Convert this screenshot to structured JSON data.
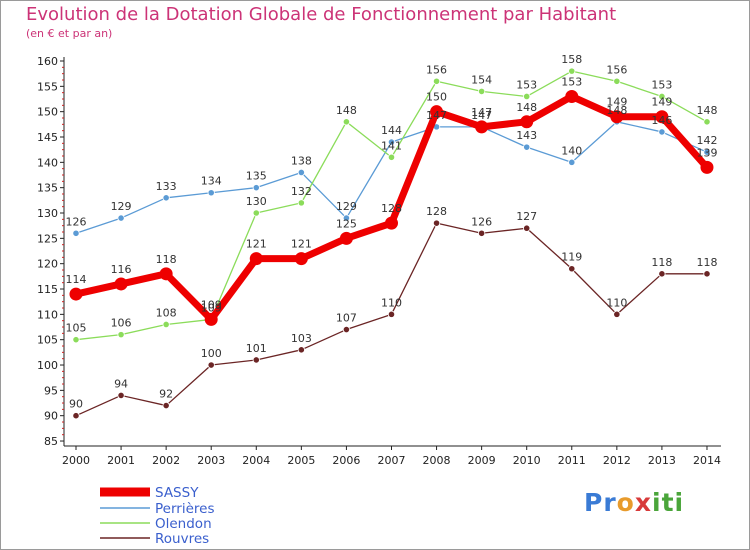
{
  "header": {
    "title": "Evolution de la Dotation Globale de Fonctionnement par Habitant",
    "subtitle": "(en € et par an)"
  },
  "logo": {
    "text": "Proxiti",
    "letters": [
      "P",
      "r",
      "o",
      "x",
      "i",
      "t",
      "i"
    ],
    "colors": [
      "#3a7bd5",
      "#3a7bd5",
      "#e89b2c",
      "#d83a3a",
      "#4aa53a",
      "#4aa53a",
      "#4aa53a"
    ]
  },
  "chart_data": {
    "type": "line",
    "categories": [
      "2000",
      "2001",
      "2002",
      "2003",
      "2004",
      "2005",
      "2006",
      "2007",
      "2008",
      "2009",
      "2010",
      "2011",
      "2012",
      "2013",
      "2014"
    ],
    "ylim": [
      85,
      160
    ],
    "yticks": [
      85,
      90,
      95,
      100,
      105,
      110,
      115,
      120,
      125,
      130,
      135,
      140,
      145,
      150,
      155,
      160
    ],
    "grid": false,
    "legend_position": "bottom-left",
    "series": [
      {
        "name": "Perrières",
        "color": "#5b9bd5",
        "values": [
          126,
          129,
          133,
          134,
          135,
          138,
          129,
          144,
          147,
          147,
          143,
          140,
          148,
          146,
          142
        ]
      },
      {
        "name": "Olendon",
        "color": "#8bdc5a",
        "values": [
          105,
          106,
          108,
          109,
          130,
          132,
          148,
          141,
          156,
          154,
          153,
          158,
          156,
          153,
          148
        ]
      },
      {
        "name": "Rouvres",
        "color": "#6b2525",
        "values": [
          90,
          94,
          92,
          100,
          101,
          103,
          107,
          110,
          128,
          126,
          127,
          119,
          110,
          118,
          118
        ]
      },
      {
        "name": "SASSY",
        "color": "#ee0000",
        "values": [
          114,
          116,
          118,
          109,
          121,
          121,
          125,
          128,
          150,
          147,
          148,
          153,
          149,
          149,
          139
        ]
      }
    ],
    "legend_order": [
      "SASSY",
      "Perrières",
      "Olendon",
      "Rouvres"
    ]
  }
}
